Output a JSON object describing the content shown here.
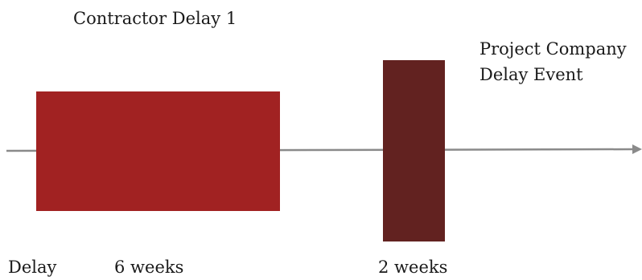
{
  "diagram": {
    "contractor_delay_label": "Contractor Delay 1",
    "project_company_label_line1": "Project Company",
    "project_company_label_line2": "Delay Event",
    "delay_axis_label": "Delay",
    "contractor_duration_label": "6 weeks",
    "project_company_duration_label": "2 weeks"
  },
  "colors": {
    "contractor_delay_block": "#a12222",
    "project_company_delay_block": "#622220",
    "timeline_arrow": "#8a8a8a"
  }
}
